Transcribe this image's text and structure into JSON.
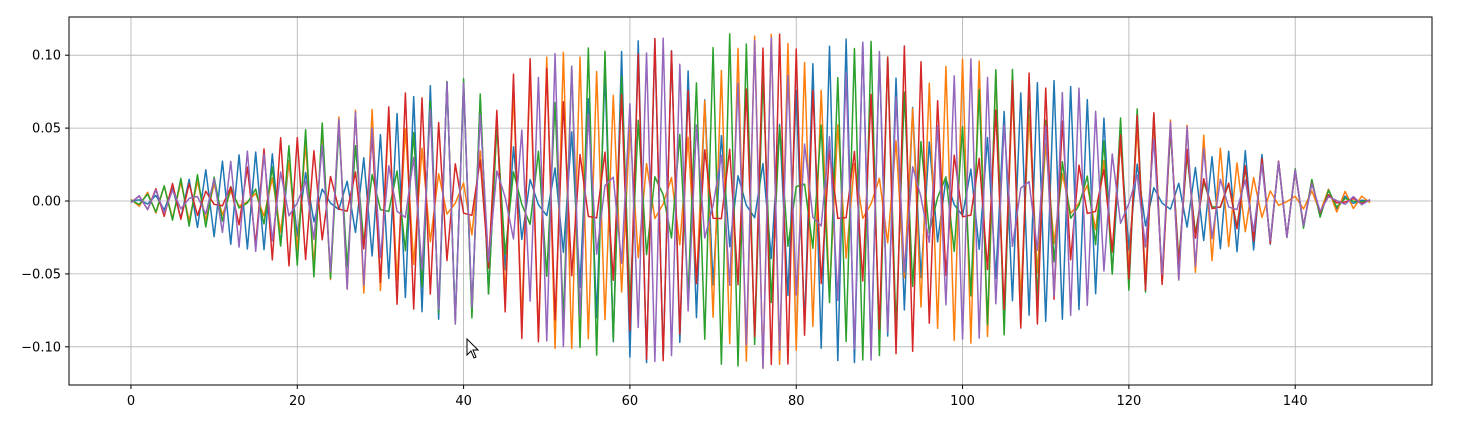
{
  "chart_data": {
    "type": "line",
    "title": "",
    "xlabel": "",
    "ylabel": "",
    "xlim": [
      -7.45,
      156.45
    ],
    "ylim": [
      -0.1262,
      0.1262
    ],
    "grid": true,
    "x_ticks": [
      0,
      20,
      40,
      60,
      80,
      100,
      120,
      140
    ],
    "x_tick_labels": [
      "0",
      "20",
      "40",
      "60",
      "80",
      "100",
      "120",
      "140"
    ],
    "y_ticks": [
      -0.1,
      -0.05,
      0.0,
      0.05,
      0.1
    ],
    "y_tick_labels": [
      "−0.10",
      "−0.05",
      "0.00",
      "0.05",
      "0.10"
    ],
    "n_points": 150,
    "amplitude": 0.1148,
    "series": [
      {
        "color": "#1f77b4",
        "cycles_per_sample": 0.48,
        "phase": -0.1
      },
      {
        "color": "#ff7f0e",
        "cycles_per_sample": 0.52,
        "phase": 1.4
      },
      {
        "color": "#2ca02c",
        "cycles_per_sample": 0.47,
        "phase": 2.6
      },
      {
        "color": "#d62728",
        "cycles_per_sample": 0.5333,
        "phase": 4.1
      },
      {
        "color": "#9467bd",
        "cycles_per_sample": 0.46,
        "phase": 5.0
      }
    ]
  },
  "colors": {
    "grid": "#b0b0b0",
    "axes": "#000000",
    "background": "#ffffff"
  },
  "cursor_icon": "arrow-pointer-icon"
}
